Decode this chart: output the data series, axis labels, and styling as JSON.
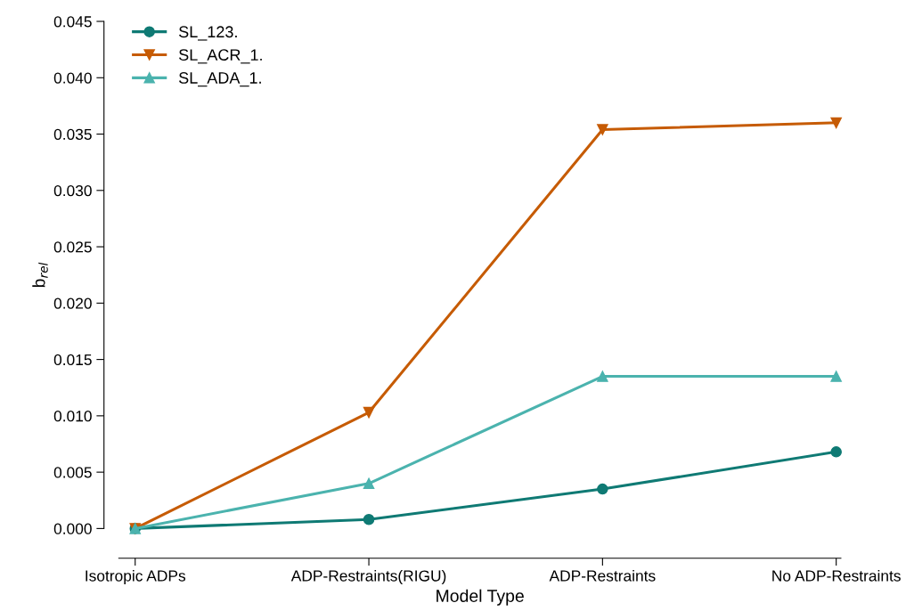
{
  "chart_data": {
    "type": "line",
    "xlabel": "Model Type",
    "ylabel": "b$_{rel}$",
    "categories": [
      "Isotropic ADPs",
      "ADP-Restraints(RIGU)",
      "ADP-Restraints",
      "No ADP-Restraints"
    ],
    "series": [
      {
        "name": "SL_123.",
        "color": "#0f7a74",
        "marker": "circle",
        "values": [
          0.0,
          0.0008,
          0.0035,
          0.0068
        ]
      },
      {
        "name": "SL_ACR_1.",
        "color": "#c65b04",
        "marker": "triangle_down",
        "values": [
          0.0,
          0.0103,
          0.0354,
          0.036
        ]
      },
      {
        "name": "SL_ADA_1.",
        "color": "#4bb3ae",
        "marker": "triangle",
        "values": [
          0.0,
          0.004,
          0.0135,
          0.0135
        ]
      }
    ],
    "ylim": [
      0.0,
      0.045
    ],
    "yticks": [
      {
        "value": 0,
        "label": "0.000"
      },
      {
        "value": 0.005,
        "label": "0.005"
      },
      {
        "value": 0.01,
        "label": "0.010"
      },
      {
        "value": 0.015,
        "label": "0.015"
      },
      {
        "value": 0.02,
        "label": "0.020"
      },
      {
        "value": 0.025,
        "label": "0.025"
      },
      {
        "value": 0.03,
        "label": "0.030"
      },
      {
        "value": 0.035,
        "label": "0.035"
      },
      {
        "value": 0.04,
        "label": "0.040"
      },
      {
        "value": 0.045,
        "label": "0.045"
      }
    ],
    "grid": false,
    "legend": "top left",
    "line_style": "solid"
  }
}
